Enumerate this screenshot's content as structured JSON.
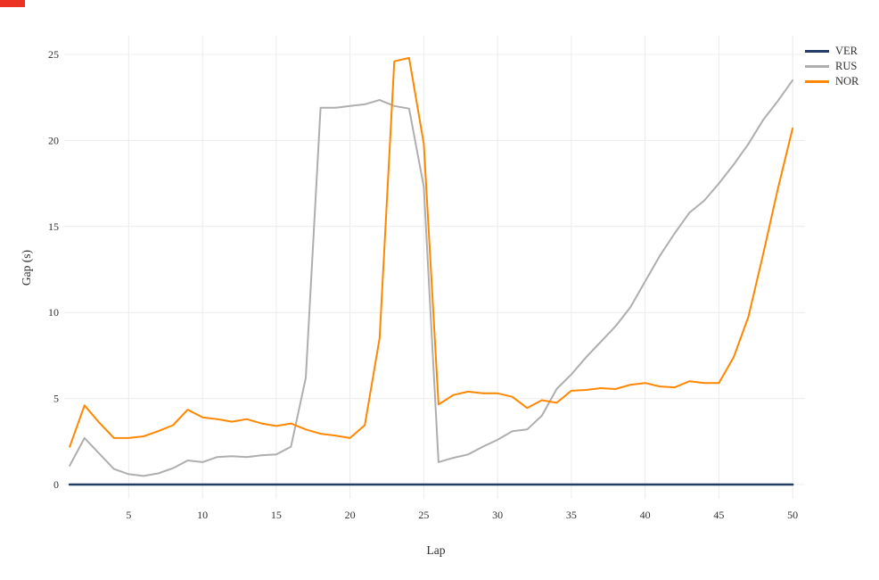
{
  "screen_marker": {
    "color": "#ec3323"
  },
  "chart_data": {
    "type": "line",
    "title": "",
    "xlabel": "Lap",
    "ylabel": "Gap (s)",
    "grid": true,
    "grid_color": "#ececec",
    "text_color": "#303030",
    "background": "#ffffff",
    "legend_position": "top-right-outside",
    "xlim": [
      1,
      50
    ],
    "ylim": [
      0,
      26
    ],
    "xticks": [
      5,
      10,
      15,
      20,
      25,
      30,
      35,
      40,
      45,
      50
    ],
    "yticks": [
      0,
      5,
      10,
      15,
      20,
      25
    ],
    "x": [
      1,
      2,
      3,
      4,
      5,
      6,
      7,
      8,
      9,
      10,
      11,
      12,
      13,
      14,
      15,
      16,
      17,
      18,
      19,
      20,
      21,
      22,
      23,
      24,
      25,
      26,
      27,
      28,
      29,
      30,
      31,
      32,
      33,
      34,
      35,
      36,
      37,
      38,
      39,
      40,
      41,
      42,
      43,
      44,
      45,
      46,
      47,
      48,
      49,
      50
    ],
    "series": [
      {
        "name": "VER",
        "color": "#223d66",
        "values": [
          0,
          0,
          0,
          0,
          0,
          0,
          0,
          0,
          0,
          0,
          0,
          0,
          0,
          0,
          0,
          0,
          0,
          0,
          0,
          0,
          0,
          0,
          0,
          0,
          0,
          0,
          0,
          0,
          0,
          0,
          0,
          0,
          0,
          0,
          0,
          0,
          0,
          0,
          0,
          0,
          0,
          0,
          0,
          0,
          0,
          0,
          0,
          0,
          0,
          0
        ]
      },
      {
        "name": "RUS",
        "color": "#aeaeae",
        "values": [
          1.1,
          2.7,
          1.8,
          0.9,
          0.6,
          0.5,
          0.65,
          0.95,
          1.4,
          1.3,
          1.6,
          1.65,
          1.6,
          1.7,
          1.75,
          2.2,
          6.2,
          21.9,
          21.9,
          22.0,
          22.1,
          22.35,
          22.0,
          21.85,
          17.3,
          1.3,
          1.55,
          1.75,
          2.2,
          2.6,
          3.1,
          3.2,
          4.0,
          5.55,
          6.4,
          7.4,
          8.3,
          9.2,
          10.3,
          11.8,
          13.3,
          14.6,
          15.8,
          16.5,
          17.5,
          18.6,
          19.8,
          21.2,
          22.3,
          23.5
        ]
      },
      {
        "name": "NOR",
        "color": "#ff8700",
        "values": [
          2.2,
          4.6,
          3.6,
          2.7,
          2.7,
          2.8,
          3.1,
          3.45,
          4.35,
          3.9,
          3.8,
          3.65,
          3.8,
          3.55,
          3.4,
          3.55,
          3.2,
          2.95,
          2.85,
          2.7,
          3.45,
          8.5,
          24.6,
          24.8,
          19.8,
          4.65,
          5.2,
          5.4,
          5.3,
          5.3,
          5.1,
          4.45,
          4.9,
          4.75,
          5.45,
          5.5,
          5.6,
          5.55,
          5.8,
          5.9,
          5.7,
          5.65,
          6.0,
          5.9,
          5.9,
          7.4,
          9.75,
          13.4,
          17.2,
          20.7
        ]
      }
    ]
  }
}
